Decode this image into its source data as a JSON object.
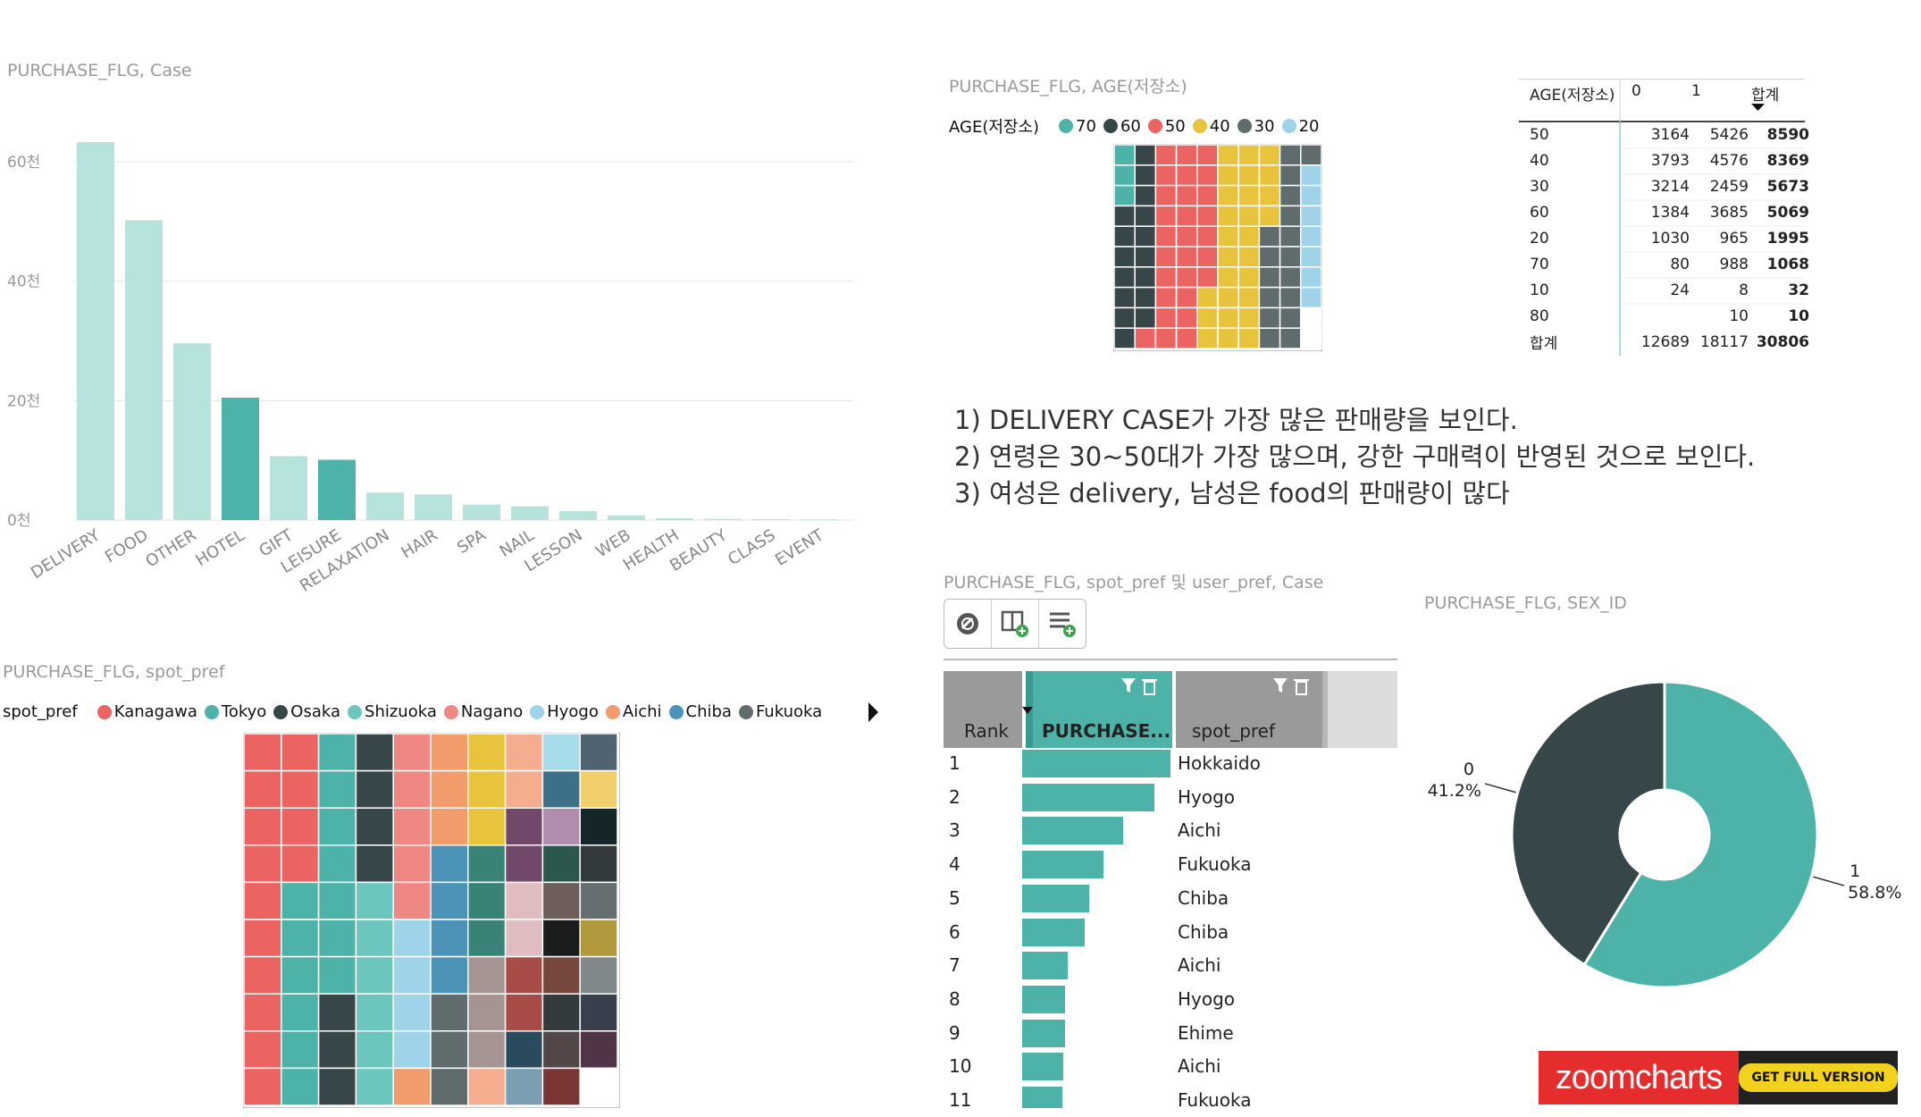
{
  "visual1": {
    "title": "PURCHASE_FLG, Case",
    "chart_data": {
      "type": "bar",
      "categories": [
        "DELIVERY",
        "FOOD",
        "OTHER",
        "HOTEL",
        "GIFT",
        "LEISURE",
        "RELAXATION",
        "HAIR",
        "SPA",
        "NAIL",
        "LESSON",
        "WEB",
        "HEALTH",
        "BEAUTY",
        "CLASS",
        "EVENT"
      ],
      "values": [
        63300,
        50200,
        29600,
        20500,
        10700,
        10100,
        4600,
        4300,
        2600,
        2300,
        1500,
        800,
        300,
        200,
        150,
        100
      ],
      "highlighted": [
        false,
        false,
        false,
        true,
        false,
        true,
        false,
        false,
        false,
        false,
        false,
        false,
        false,
        false,
        false,
        false
      ],
      "ylim": [
        0,
        70000
      ],
      "yticks": [
        0,
        20000,
        40000,
        60000
      ],
      "ytick_labels": [
        "0천",
        "20천",
        "40천",
        "60천"
      ],
      "colors": {
        "bar": "#b7e3dd",
        "highlight": "#4db3a8",
        "grid": "#e6e6e6"
      }
    }
  },
  "visual2": {
    "title": "PURCHASE_FLG, AGE(저장소)",
    "legend_title": "AGE(저장소)",
    "legend": [
      {
        "label": "70",
        "color": "#4db3a8"
      },
      {
        "label": "60",
        "color": "#374649"
      },
      {
        "label": "50",
        "color": "#ec6461"
      },
      {
        "label": "40",
        "color": "#e8c33c"
      },
      {
        "label": "30",
        "color": "#5f6b6d"
      },
      {
        "label": "20",
        "color": "#9ed3ea"
      }
    ],
    "chart_data": {
      "type": "heatmap",
      "cols": 10,
      "rows": 10,
      "grid": [
        [
          0,
          1,
          2,
          2,
          2,
          3,
          3,
          3,
          4,
          4
        ],
        [
          0,
          1,
          2,
          2,
          2,
          3,
          3,
          3,
          4,
          5
        ],
        [
          0,
          1,
          2,
          2,
          2,
          3,
          3,
          3,
          4,
          5
        ],
        [
          1,
          1,
          2,
          2,
          2,
          3,
          3,
          3,
          4,
          5
        ],
        [
          1,
          1,
          2,
          2,
          2,
          3,
          3,
          4,
          4,
          5
        ],
        [
          1,
          1,
          2,
          2,
          2,
          3,
          3,
          4,
          4,
          5
        ],
        [
          1,
          1,
          2,
          2,
          2,
          3,
          3,
          4,
          4,
          5
        ],
        [
          1,
          1,
          2,
          2,
          3,
          3,
          3,
          4,
          4,
          5
        ],
        [
          1,
          1,
          2,
          2,
          3,
          3,
          3,
          4,
          4,
          6
        ],
        [
          1,
          2,
          2,
          2,
          3,
          3,
          3,
          4,
          4,
          6
        ]
      ],
      "palette": [
        "#4db3a8",
        "#374649",
        "#ec6461",
        "#e8c33c",
        "#5f6b6d",
        "#9ed3ea",
        "#ffffff"
      ]
    }
  },
  "matrix": {
    "headers": [
      "AGE(저장소)",
      "0",
      "1",
      "합계"
    ],
    "rows": [
      {
        "age": "50",
        "c0": "3164",
        "c1": "5426",
        "total": "8590"
      },
      {
        "age": "40",
        "c0": "3793",
        "c1": "4576",
        "total": "8369"
      },
      {
        "age": "30",
        "c0": "3214",
        "c1": "2459",
        "total": "5673"
      },
      {
        "age": "60",
        "c0": "1384",
        "c1": "3685",
        "total": "5069"
      },
      {
        "age": "20",
        "c0": "1030",
        "c1": "965",
        "total": "1995"
      },
      {
        "age": "70",
        "c0": "80",
        "c1": "988",
        "total": "1068"
      },
      {
        "age": "10",
        "c0": "24",
        "c1": "8",
        "total": "32"
      },
      {
        "age": "80",
        "c0": "",
        "c1": "10",
        "total": "10"
      }
    ],
    "total_row": {
      "age": "합계",
      "c0": "12689",
      "c1": "18117",
      "total": "30806"
    }
  },
  "notes": {
    "line1": "1) DELIVERY CASE가 가장 많은 판매량을 보인다.",
    "line2": "2) 연령은 30~50대가 가장 많으며, 강한 구매력이 반영된 것으로 보인다.",
    "line3": "3) 여성은 delivery,  남성은 food의 판매량이 많다"
  },
  "visual3": {
    "title": "PURCHASE_FLG, spot_pref",
    "legend_title": "spot_pref",
    "legend": [
      {
        "label": "Kanagawa",
        "color": "#ec6461"
      },
      {
        "label": "Tokyo",
        "color": "#4db3a8"
      },
      {
        "label": "Osaka",
        "color": "#374649"
      },
      {
        "label": "Shizuoka",
        "color": "#6cc6bd"
      },
      {
        "label": "Nagano",
        "color": "#ef8783"
      },
      {
        "label": "Hyogo",
        "color": "#9ed3ea"
      },
      {
        "label": "Aichi",
        "color": "#f29b6b"
      },
      {
        "label": "Chiba",
        "color": "#4b94b8"
      },
      {
        "label": "Fukuoka",
        "color": "#5f6b6d"
      }
    ],
    "chart_data": {
      "type": "heatmap",
      "cols": 10,
      "rows": 10,
      "grid": [
        [
          "#ec6461",
          "#ec6461",
          "#4db3a8",
          "#374649",
          "#ef8783",
          "#f29b6b",
          "#e8c33c",
          "#f4ad8f",
          "#a7dcea",
          "#4f6470"
        ],
        [
          "#ec6461",
          "#ec6461",
          "#4db3a8",
          "#374649",
          "#ef8783",
          "#f29b6b",
          "#e8c33c",
          "#f4ad8f",
          "#3c7088",
          "#f1d06c"
        ],
        [
          "#ec6461",
          "#ec6461",
          "#4db3a8",
          "#374649",
          "#ef8783",
          "#f29b6b",
          "#e8c33c",
          "#71486a",
          "#b08cad",
          "#15262a"
        ],
        [
          "#ec6461",
          "#ec6461",
          "#4db3a8",
          "#374649",
          "#ef8783",
          "#4b94b8",
          "#398277",
          "#71486a",
          "#2b574d",
          "#323a3c"
        ],
        [
          "#ec6461",
          "#4db3a8",
          "#4db3a8",
          "#6cc6bd",
          "#ef8783",
          "#4b94b8",
          "#398277",
          "#dfbcc0",
          "#6d5e5b",
          "#656e70"
        ],
        [
          "#ec6461",
          "#4db3a8",
          "#4db3a8",
          "#6cc6bd",
          "#9ed3ea",
          "#4b94b8",
          "#398277",
          "#dfbcc0",
          "#1b1c1d",
          "#b1983d"
        ],
        [
          "#ec6461",
          "#4db3a8",
          "#4db3a8",
          "#6cc6bd",
          "#9ed3ea",
          "#4b94b8",
          "#a69493",
          "#a84c47",
          "#76473c",
          "#808889"
        ],
        [
          "#ec6461",
          "#4db3a8",
          "#374649",
          "#6cc6bd",
          "#9ed3ea",
          "#5f6b6d",
          "#a69493",
          "#a84c47",
          "#323a3c",
          "#3a3f4e"
        ],
        [
          "#ec6461",
          "#4db3a8",
          "#374649",
          "#6cc6bd",
          "#9ed3ea",
          "#5f6b6d",
          "#a69493",
          "#2a4b5d",
          "#524648",
          "#513448"
        ],
        [
          "#ec6461",
          "#4db3a8",
          "#374649",
          "#6cc6bd",
          "#f29b6b",
          "#5f6b6d",
          "#f4ad8f",
          "#7b9fb2",
          "#7a3535",
          "#ffffff"
        ]
      ]
    }
  },
  "visual4": {
    "title": "PURCHASE_FLG, spot_pref 및 user_pref, Case",
    "col_rank": "Rank",
    "col_purchase": "PURCHASE...",
    "col_spot": "spot_pref",
    "rows": [
      {
        "rank": "1",
        "pref": "Hokkaido",
        "value": 100
      },
      {
        "rank": "2",
        "pref": "Hyogo",
        "value": 89
      },
      {
        "rank": "3",
        "pref": "Aichi",
        "value": 68
      },
      {
        "rank": "4",
        "pref": "Fukuoka",
        "value": 55
      },
      {
        "rank": "5",
        "pref": "Chiba",
        "value": 45
      },
      {
        "rank": "6",
        "pref": "Chiba",
        "value": 42
      },
      {
        "rank": "7",
        "pref": "Aichi",
        "value": 31
      },
      {
        "rank": "8",
        "pref": "Hyogo",
        "value": 29
      },
      {
        "rank": "9",
        "pref": "Ehime",
        "value": 29
      },
      {
        "rank": "10",
        "pref": "Aichi",
        "value": 28
      },
      {
        "rank": "11",
        "pref": "Fukuoka",
        "value": 27
      }
    ],
    "colors": {
      "bar": "#4db3a8",
      "header_gray": "#999999",
      "header_active": "#4db3a8",
      "right_panel": "#dcdcdc"
    }
  },
  "visual5": {
    "title": "PURCHASE_FLG, SEX_ID",
    "chart_data": {
      "type": "pie",
      "slices": [
        {
          "label": "1",
          "value": 58.8,
          "pct": "58.8%",
          "color": "#4db3a8"
        },
        {
          "label": "0",
          "value": 41.2,
          "pct": "41.2%",
          "color": "#374649"
        }
      ]
    }
  },
  "zoomcharts": {
    "brand": "zoomcharts",
    "cta": "GET FULL VERSION",
    "colors": {
      "brand_bg": "#e62d2d",
      "dark_bg": "#222222",
      "cta_bg": "#f3d21e"
    }
  }
}
